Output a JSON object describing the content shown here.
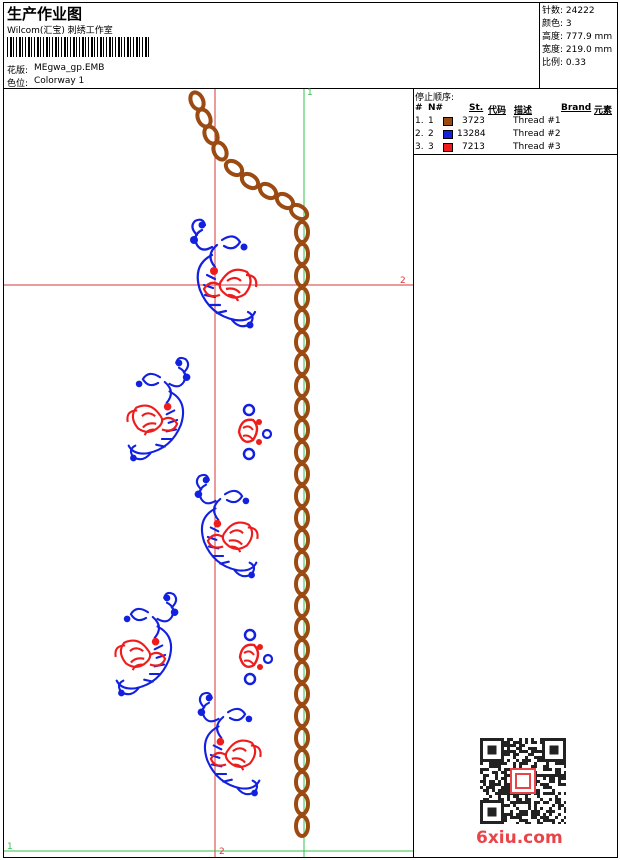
{
  "header": {
    "title": "生产作业图",
    "company": "Wilcom(汇宝) 刺绣工作室",
    "design_label": "花版:",
    "design_value": "MEgwa_gp.EMB",
    "colorway_label": "色位:",
    "colorway_value": "Colorway 1"
  },
  "stats": [
    {
      "label": "针数:",
      "value": "24222"
    },
    {
      "label": "颜色:",
      "value": "3"
    },
    {
      "label": "高度:",
      "value": "777.9 mm"
    },
    {
      "label": "宽度:",
      "value": "219.0 mm"
    },
    {
      "label": "比例:",
      "value": "0.33"
    }
  ],
  "stop_sequence": {
    "title": "停止顺序:",
    "headers": {
      "num": "#",
      "n": "N#",
      "st": "St.",
      "code": "代码",
      "desc": "描述",
      "brand": "Brand",
      "element": "元素"
    },
    "rows": [
      {
        "index": "1.",
        "n": "1",
        "color": "#9b4a12",
        "code": "3723",
        "desc": "Thread #1"
      },
      {
        "index": "2.",
        "n": "2",
        "color": "#1220e0",
        "code": "13284",
        "desc": "Thread #2"
      },
      {
        "index": "3.",
        "n": "3",
        "color": "#ee1c1c",
        "code": "7213",
        "desc": "Thread #3"
      }
    ]
  },
  "axes": {
    "v_green_label": "1",
    "h_red_label": "2",
    "h_green_label": "1",
    "v_red_label": "2"
  },
  "colors": {
    "thread1": "#9b4a12",
    "thread2": "#1220e0",
    "thread3": "#ee1c1c",
    "guide_red": "#d63a3a",
    "guide_green": "#33c24d"
  },
  "watermark": {
    "text": "6xiu.com"
  }
}
